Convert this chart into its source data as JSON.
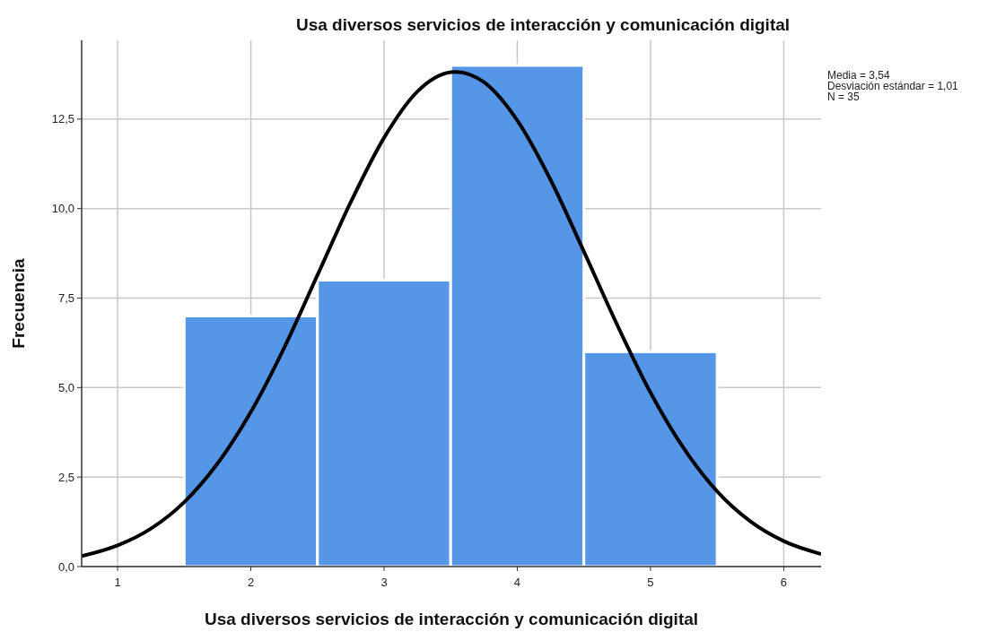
{
  "chart_data": {
    "type": "histogram",
    "title": "Usa diversos servicios de interacción y comunicación digital",
    "xlabel": "Usa diversos servicios de interacción y comunicación digital",
    "ylabel": "Frecuencia",
    "annotations": [
      "Media = 3,54",
      "Desviación estándar = 1,01",
      "N = 35"
    ],
    "bins": [
      1.5,
      2.5,
      3.5,
      4.5,
      5.5
    ],
    "values": [
      7,
      8,
      14,
      6
    ],
    "color": "#5596e6",
    "series": [
      {
        "type": "line",
        "color": "#000000",
        "x": [
          0.73,
          1,
          1.25,
          1.5,
          1.75,
          2,
          2.25,
          2.5,
          2.75,
          3,
          3.25,
          3.5,
          3.54,
          3.75,
          4,
          4.25,
          4.5,
          4.75,
          5,
          5.25,
          5.5,
          5.75,
          6,
          6.28
        ],
        "values": [
          0.29,
          0.59,
          1.06,
          1.8,
          2.88,
          4.32,
          6.11,
          8.14,
          10.18,
          11.98,
          13.27,
          13.81,
          13.82,
          13.53,
          12.46,
          10.8,
          8.8,
          6.75,
          4.86,
          3.3,
          2.1,
          1.26,
          0.71,
          0.35
        ]
      }
    ],
    "xlim": [
      0.73,
      6.28
    ],
    "ylim": [
      0,
      14.7
    ],
    "xticks": [
      1,
      2,
      3,
      4,
      5,
      6
    ],
    "yticks": [
      {
        "value": 0,
        "label": "0,0"
      },
      {
        "value": 2.5,
        "label": "2,5"
      },
      {
        "value": 5,
        "label": "5,0"
      },
      {
        "value": 7.5,
        "label": "7,5"
      },
      {
        "value": 10,
        "label": "10,0"
      },
      {
        "value": 12.5,
        "label": "12,5"
      }
    ],
    "grid": true
  }
}
